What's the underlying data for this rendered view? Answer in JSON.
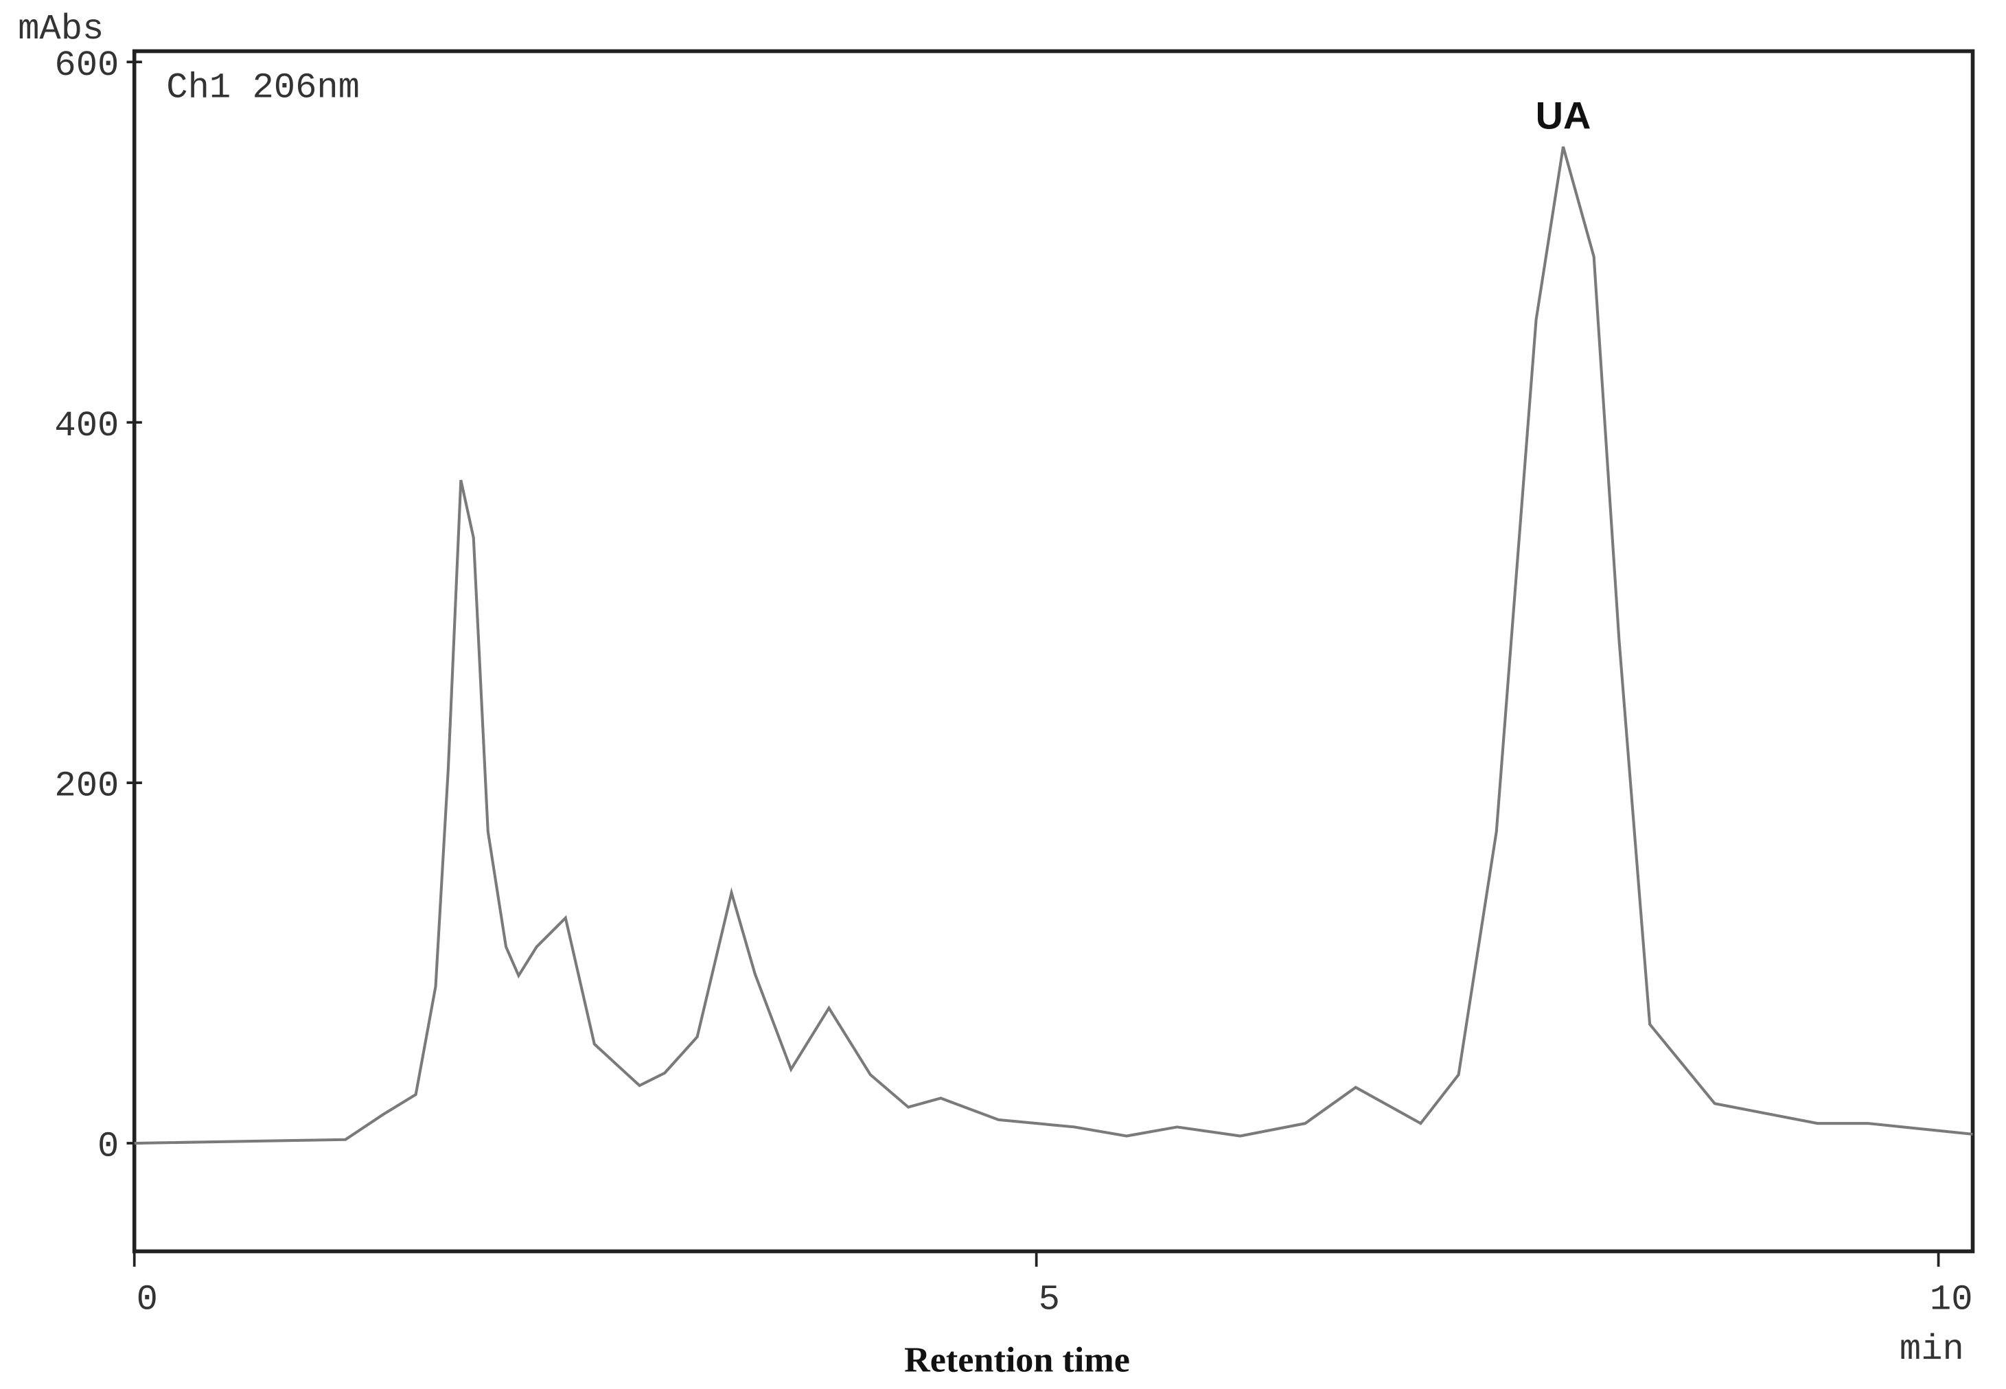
{
  "chart_data": {
    "type": "line",
    "y_label": "mAbs",
    "channel_label": "Ch1 206nm",
    "x_label": "Retention time",
    "x_unit": "min",
    "annotation": "UA",
    "x": [
      0,
      1.17,
      1.38,
      1.56,
      1.67,
      1.74,
      1.81,
      1.88,
      1.96,
      2.06,
      2.13,
      2.23,
      2.39,
      2.55,
      2.8,
      2.94,
      3.12,
      3.31,
      3.44,
      3.64,
      3.85,
      4.08,
      4.29,
      4.47,
      4.79,
      5.21,
      5.5,
      5.78,
      6.13,
      6.49,
      6.77,
      7.13,
      7.34,
      7.55,
      7.77,
      7.92,
      8.09,
      8.23,
      8.4,
      8.76,
      9.33,
      9.61,
      10.19
    ],
    "series": [
      {
        "name": "Ch1 206nm",
        "color": "#7a7a7a",
        "values": [
          0,
          2,
          16,
          27,
          87,
          208,
          368,
          336,
          173,
          109,
          93,
          109,
          125,
          55,
          32,
          39,
          59,
          139,
          94,
          41,
          75,
          38,
          20,
          25,
          13,
          9,
          4,
          9,
          4,
          11,
          31,
          11,
          38,
          173,
          457,
          553,
          492,
          279,
          66,
          22,
          11,
          11,
          5
        ]
      }
    ],
    "xlim": [
      0,
      10.19
    ],
    "ylim": [
      -60,
      606
    ],
    "xticks": [
      0,
      5,
      10
    ],
    "yticks": [
      0,
      200,
      400,
      600
    ]
  }
}
